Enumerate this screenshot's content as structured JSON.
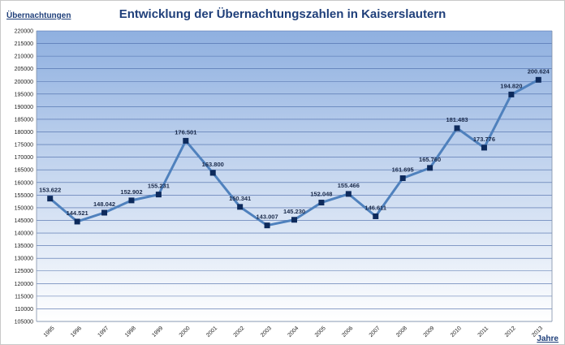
{
  "chart_data": {
    "type": "line",
    "title": "Entwicklung der Übernachtungszahlen in Kaiserslautern",
    "ylabel": "Übernachtungen",
    "xlabel": "Jahre",
    "ylim": [
      105000,
      220000
    ],
    "ytick_step": 5000,
    "grid": true,
    "categories": [
      "1995",
      "1996",
      "1997",
      "1998",
      "1999",
      "2000",
      "2001",
      "2002",
      "2003",
      "2004",
      "2005",
      "2006",
      "2007",
      "2008",
      "2009",
      "2010",
      "2011",
      "2012",
      "2013"
    ],
    "values": [
      153622,
      144521,
      148042,
      152902,
      155231,
      176501,
      163800,
      150341,
      143007,
      145230,
      152048,
      155466,
      146611,
      161695,
      165760,
      181483,
      173776,
      194820,
      200624
    ],
    "data_labels": [
      "153.622",
      "144.521",
      "148.042",
      "152.902",
      "155.231",
      "176.501",
      "163.800",
      "150.341",
      "143.007",
      "145.230",
      "152.048",
      "155.466",
      "146.611",
      "161.695",
      "165.760",
      "181.483",
      "173.776",
      "194.820",
      "200.624"
    ],
    "line_color": "#4f81bd",
    "marker_color": "#0d2a5c",
    "plot_bg_top": "#8fb0e0",
    "plot_bg_bottom": "#ffffff",
    "grid_color": "#4a6aa8"
  }
}
